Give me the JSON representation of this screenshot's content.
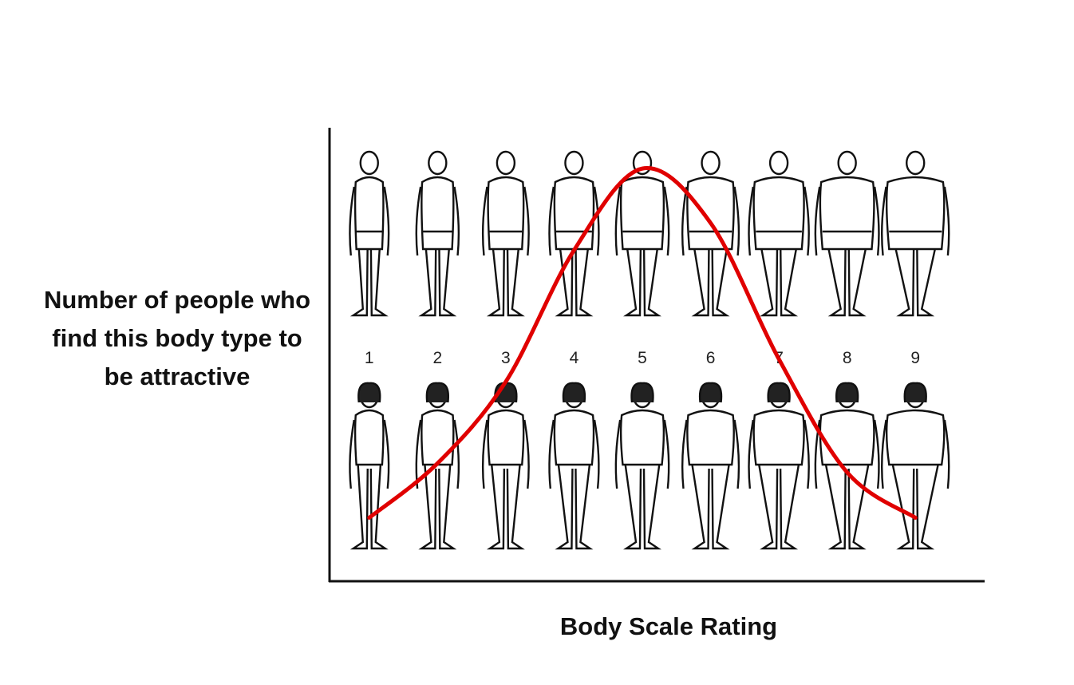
{
  "chart_data": {
    "type": "line",
    "x_label": "Body Scale Rating",
    "y_label": "Number of people who find this body type to be attractive",
    "categories": [
      "1",
      "2",
      "3",
      "4",
      "5",
      "6",
      "7",
      "8",
      "9"
    ],
    "values": [
      14,
      26,
      44,
      73,
      91,
      79,
      49,
      24,
      14
    ],
    "color": "#e00000",
    "ylim": [
      0,
      100
    ]
  }
}
